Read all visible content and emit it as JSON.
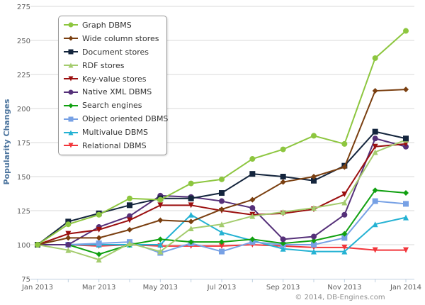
{
  "chart_data": {
    "type": "line",
    "title": "",
    "xlabel": "",
    "ylabel": "Popularity Changes",
    "ylim": [
      75,
      275
    ],
    "yticks": [
      "75",
      "100",
      "125",
      "150",
      "175",
      "200",
      "225",
      "250",
      "275"
    ],
    "x": [
      "Jan 2013",
      "Feb 2013",
      "Mar 2013",
      "Apr 2013",
      "May 2013",
      "Jun 2013",
      "Jul 2013",
      "Aug 2013",
      "Sep 2013",
      "Oct 2013",
      "Nov 2013",
      "Dec 2013",
      "Jan 2014"
    ],
    "xticks": [
      "Jan 2013",
      "Mar 2013",
      "May 2013",
      "Jul 2013",
      "Sep 2013",
      "Nov 2013",
      "Jan 2014"
    ],
    "grid": "horizontal",
    "legend_position": "top-left",
    "credit": "© 2014, DB-Engines.com",
    "series": [
      {
        "name": "Graph DBMS",
        "color": "#8dc63f",
        "marker": "circle",
        "values": [
          100,
          115,
          122,
          134,
          133,
          145,
          148,
          163,
          170,
          180,
          174,
          237,
          257
        ]
      },
      {
        "name": "Wide column stores",
        "color": "#7a3f10",
        "marker": "diamond",
        "values": [
          100,
          105,
          105,
          111,
          118,
          117,
          126,
          133,
          146,
          150,
          157,
          213,
          214
        ]
      },
      {
        "name": "Document stores",
        "color": "#14253d",
        "marker": "square",
        "values": [
          100,
          117,
          123,
          129,
          134,
          134,
          138,
          152,
          150,
          147,
          158,
          183,
          178
        ]
      },
      {
        "name": "RDF stores",
        "color": "#a4cc6e",
        "marker": "triangle",
        "values": [
          100,
          96,
          89,
          101,
          95,
          112,
          115,
          121,
          124,
          127,
          131,
          168,
          177
        ]
      },
      {
        "name": "Key-value stores",
        "color": "#9b0f0f",
        "marker": "triangle-down",
        "values": [
          100,
          108,
          111,
          118,
          129,
          129,
          125,
          122,
          123,
          126,
          137,
          172,
          174
        ]
      },
      {
        "name": "Native XML DBMS",
        "color": "#553079",
        "marker": "circle",
        "values": [
          100,
          100,
          113,
          121,
          136,
          135,
          132,
          127,
          104,
          106,
          122,
          178,
          172
        ]
      },
      {
        "name": "Search engines",
        "color": "#10a010",
        "marker": "diamond",
        "values": [
          100,
          100,
          93,
          100,
          104,
          102,
          102,
          104,
          101,
          103,
          108,
          140,
          138
        ]
      },
      {
        "name": "Object oriented DBMS",
        "color": "#77a1e5",
        "marker": "square",
        "values": [
          100,
          100,
          101,
          102,
          94,
          101,
          95,
          102,
          100,
          100,
          105,
          132,
          130
        ]
      },
      {
        "name": "Multivalue DBMS",
        "color": "#25b2d3",
        "marker": "triangle",
        "values": [
          100,
          100,
          100,
          100,
          100,
          122,
          109,
          103,
          97,
          95,
          95,
          115,
          120
        ]
      },
      {
        "name": "Relational DBMS",
        "color": "#f2353a",
        "marker": "triangle-down",
        "values": [
          100,
          100,
          99,
          100,
          99,
          99,
          99,
          100,
          99,
          98,
          98,
          96,
          96
        ]
      }
    ]
  }
}
